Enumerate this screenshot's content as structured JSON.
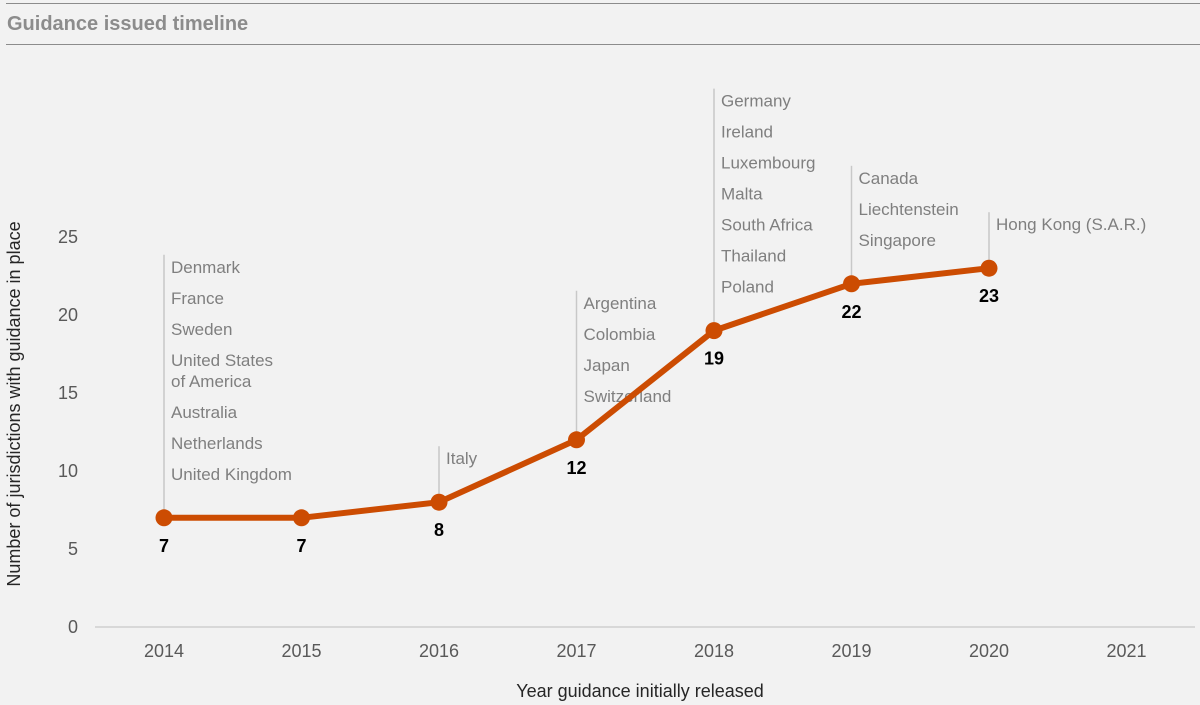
{
  "header": {
    "title": "Guidance issued timeline"
  },
  "colors": {
    "line": "#cc4c02",
    "annotation_line": "#c8c8c8",
    "axis": "#bfbfbf",
    "background": "#f2f2f2"
  },
  "chart_data": {
    "type": "line",
    "title": "Guidance issued timeline",
    "xlabel": "Year guidance initially released",
    "ylabel": "Number of  jurisdictions with guidance in place",
    "categories": [
      "2014",
      "2015",
      "2016",
      "2017",
      "2018",
      "2019",
      "2020",
      "2021"
    ],
    "yticks": [
      0,
      5,
      10,
      15,
      20,
      25
    ],
    "ylim": [
      0,
      25
    ],
    "grid": false,
    "legend": "none",
    "series": [
      {
        "values": [
          7,
          7,
          8,
          12,
          19,
          22,
          23,
          null
        ],
        "labels": [
          "7",
          "7",
          "8",
          "12",
          "19",
          "22",
          "23",
          ""
        ]
      }
    ],
    "annotations": [
      {
        "year": "2014",
        "lines": [
          "Denmark",
          "France",
          "Sweden",
          "United States",
          "of America",
          "Australia",
          "Netherlands",
          "United Kingdom"
        ]
      },
      {
        "year": "2016",
        "lines": [
          "Italy"
        ]
      },
      {
        "year": "2017",
        "lines": [
          "Argentina",
          "Colombia",
          "Japan",
          "Switzerland"
        ]
      },
      {
        "year": "2018",
        "lines": [
          "Germany",
          "Ireland",
          "Luxembourg",
          "Malta",
          "South Africa",
          "Thailand",
          "Poland"
        ]
      },
      {
        "year": "2019",
        "lines": [
          "Canada",
          "Liechtenstein",
          "Singapore"
        ]
      },
      {
        "year": "2020",
        "lines": [
          "Hong Kong (S.A.R.)"
        ]
      }
    ]
  }
}
